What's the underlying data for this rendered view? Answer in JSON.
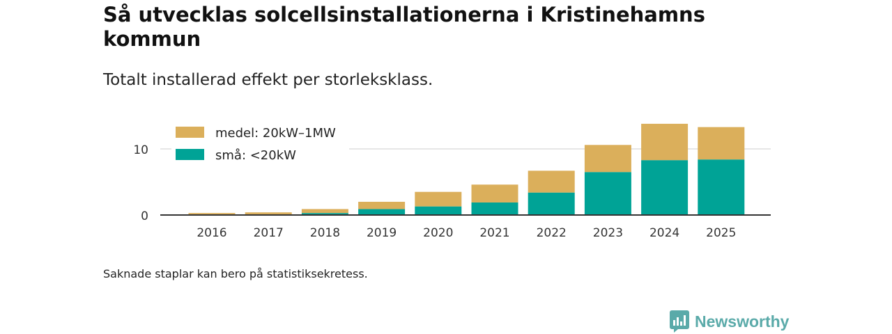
{
  "title": "Så utvecklas solcellsinstallationerna i Kristinehamns kommun",
  "subtitle": "Totalt installerad effekt per storleksklass.",
  "footnote": "Saknade staplar kan bero på statistiksekretess.",
  "brand": {
    "name": "Newsworthy",
    "icon": "newsworthy-logo-icon",
    "color": "#5aaaa9"
  },
  "chart_data": {
    "type": "bar",
    "stacked": true,
    "categories": [
      "2016",
      "2017",
      "2018",
      "2019",
      "2020",
      "2021",
      "2022",
      "2023",
      "2024",
      "2025"
    ],
    "series": [
      {
        "name": "små: <20kW",
        "color": "#00a396",
        "values": [
          0.1,
          0.1,
          0.3,
          0.9,
          1.3,
          1.9,
          3.4,
          6.5,
          8.3,
          8.4
        ]
      },
      {
        "name": "medel: 20kW–1MW",
        "color": "#dbaf5b",
        "values": [
          0.2,
          0.3,
          0.6,
          1.1,
          2.2,
          2.7,
          3.3,
          4.1,
          5.5,
          4.9
        ]
      }
    ],
    "legend": [
      {
        "label": "medel: 20kW–1MW",
        "color": "#dbaf5b"
      },
      {
        "label": "små: <20kW",
        "color": "#00a396"
      }
    ],
    "yticks": [
      0,
      10
    ],
    "ylim": [
      0,
      14
    ],
    "xlabel": "",
    "ylabel": "",
    "grid": true
  }
}
